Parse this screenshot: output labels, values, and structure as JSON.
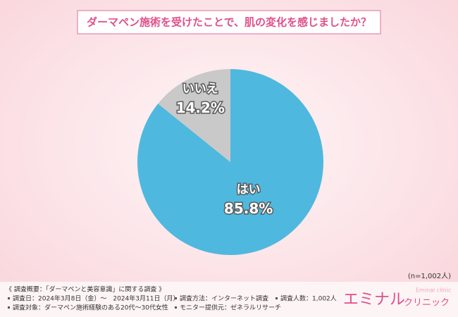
{
  "chart_data": {
    "type": "pie",
    "title": "ダーマペン施術を受けたことで、肌の変化を感じましたか？",
    "categories": [
      "はい",
      "いいえ"
    ],
    "values": [
      85.8,
      14.2
    ],
    "value_labels": [
      "85.8%",
      "14.2%"
    ],
    "colors": [
      "#4fb8df",
      "#c9c9c9"
    ],
    "note": "(n=1,002人)"
  },
  "footer": {
    "heading": "《 調査概要：「ダーマペンと美容意識」に関する調査 》",
    "items": [
      "調査日：2024年3月8日（金）～　2024年3月11日（月）",
      "調査方法：インターネット調査",
      "調査人数：1,002人",
      "調査対象：ダーマペン施術経験のある20代～30代女性",
      "モニター提供元：ゼネラルリサーチ"
    ]
  },
  "logo": {
    "main": "エミナル",
    "sub": "クリニック",
    "en": "Eminal clinic"
  }
}
